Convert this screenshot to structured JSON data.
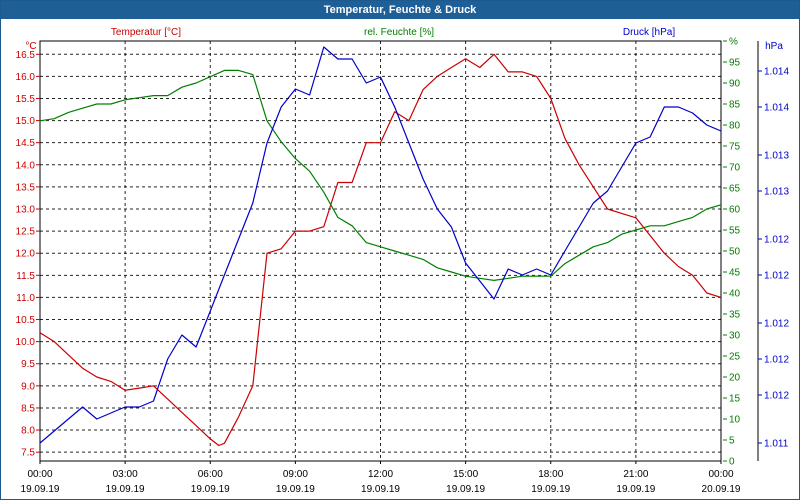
{
  "window": {
    "title": "Temperatur, Feuchte & Druck"
  },
  "colors": {
    "temperature": "#cc0000",
    "humidity": "#008000",
    "pressure": "#0000cc",
    "titlebar": "#1f5f97",
    "axis": "#000000"
  },
  "chart_data": {
    "type": "line",
    "title": "Temperatur, Feuchte & Druck",
    "legend": {
      "temperature": "Temperatur [°C]",
      "humidity": "rel. Feuchte [%]",
      "pressure": "Druck [hPa]"
    },
    "unit_labels": {
      "left": "°C",
      "middle": "%",
      "right": "hPa"
    },
    "x_ticks": [
      {
        "time": "00:00",
        "date": "19.09.19"
      },
      {
        "time": "03:00",
        "date": "19.09.19"
      },
      {
        "time": "06:00",
        "date": "19.09.19"
      },
      {
        "time": "09:00",
        "date": "19.09.19"
      },
      {
        "time": "12:00",
        "date": "19.09.19"
      },
      {
        "time": "15:00",
        "date": "19.09.19"
      },
      {
        "time": "18:00",
        "date": "19.09.19"
      },
      {
        "time": "21:00",
        "date": "19.09.19"
      },
      {
        "time": "00:00",
        "date": "20.09.19"
      }
    ],
    "xlim_hours": [
      0,
      24
    ],
    "temperature_axis": {
      "ylim": [
        7.3,
        16.8
      ],
      "ticks": [
        "7.5",
        "8.0",
        "8.5",
        "9.0",
        "9.5",
        "10.0",
        "10.5",
        "11.0",
        "11.5",
        "12.0",
        "12.5",
        "13.0",
        "13.5",
        "14.0",
        "14.5",
        "15.0",
        "15.5",
        "16.0",
        "16.5"
      ]
    },
    "humidity_axis": {
      "ylim": [
        0,
        100
      ],
      "ticks": [
        "0",
        "5",
        "10",
        "15",
        "20",
        "25",
        "30",
        "35",
        "40",
        "45",
        "50",
        "55",
        "60",
        "65",
        "70",
        "75",
        "80",
        "85",
        "90",
        "95",
        "%"
      ]
    },
    "pressure_axis": {
      "ylim": [
        1010.85,
        1014.35
      ],
      "ticks": [
        {
          "value": 1011.0,
          "label": "1.011"
        },
        {
          "value": 1011.4,
          "label": "1.012"
        },
        {
          "value": 1011.7,
          "label": "1.012"
        },
        {
          "value": 1012.0,
          "label": "1.012"
        },
        {
          "value": 1012.4,
          "label": "1.012"
        },
        {
          "value": 1012.7,
          "label": "1.012"
        },
        {
          "value": 1013.1,
          "label": "1.013"
        },
        {
          "value": 1013.4,
          "label": "1.013"
        },
        {
          "value": 1013.8,
          "label": "1.014"
        },
        {
          "value": 1014.1,
          "label": "1.014"
        }
      ]
    },
    "series": [
      {
        "name": "Temperatur [°C]",
        "axis": "temperature",
        "x": [
          0,
          0.5,
          1,
          1.5,
          2,
          2.5,
          3,
          3.5,
          4,
          4.5,
          5,
          5.5,
          6,
          6.3,
          6.5,
          7,
          7.5,
          8,
          8.5,
          9,
          9.5,
          10,
          10.5,
          11,
          11.5,
          12,
          12.5,
          13,
          13.5,
          14,
          14.5,
          15,
          15.5,
          16,
          16.5,
          17,
          17.5,
          18,
          18.5,
          19,
          19.5,
          20,
          20.5,
          21,
          21.5,
          22,
          22.5,
          23,
          23.5,
          24
        ],
        "values": [
          10.2,
          10.0,
          9.7,
          9.4,
          9.2,
          9.1,
          8.9,
          8.95,
          9.0,
          8.7,
          8.4,
          8.1,
          7.8,
          7.65,
          7.7,
          8.3,
          9.0,
          12.0,
          12.1,
          12.5,
          12.5,
          12.6,
          13.6,
          13.6,
          14.5,
          14.5,
          15.2,
          15.0,
          15.7,
          16.0,
          16.2,
          16.4,
          16.2,
          16.5,
          16.1,
          16.1,
          16.0,
          15.5,
          14.6,
          14.0,
          13.5,
          13.0,
          12.9,
          12.8,
          12.4,
          12.0,
          11.7,
          11.5,
          11.1,
          11.0
        ]
      },
      {
        "name": "rel. Feuchte [%]",
        "axis": "humidity",
        "x": [
          0,
          0.5,
          1,
          1.5,
          2,
          2.5,
          3,
          3.5,
          4,
          4.5,
          5,
          5.5,
          6,
          6.5,
          7,
          7.5,
          8,
          8.5,
          9,
          9.5,
          10,
          10.5,
          11,
          11.5,
          12,
          12.5,
          13,
          13.5,
          14,
          14.5,
          15,
          15.5,
          16,
          16.5,
          17,
          17.5,
          18,
          18.5,
          19,
          19.5,
          20,
          20.5,
          21,
          21.5,
          22,
          22.5,
          23,
          23.5,
          24
        ],
        "values": [
          81,
          81.5,
          83,
          84,
          85,
          85,
          86,
          86.5,
          87,
          87,
          89,
          90,
          91.5,
          93,
          93,
          92,
          81,
          76,
          72,
          69,
          64,
          58,
          56,
          52,
          51,
          50,
          49,
          48,
          46,
          45,
          44,
          43.5,
          43,
          43.5,
          44,
          44,
          44,
          47,
          49,
          51,
          52,
          54,
          55,
          56,
          56,
          57,
          58,
          60,
          61
        ]
      },
      {
        "name": "Druck [hPa]",
        "axis": "pressure",
        "x": [
          0,
          0.5,
          1,
          1.5,
          2,
          2.5,
          3,
          3.5,
          4,
          4.5,
          5,
          5.5,
          6,
          6.5,
          7,
          7.5,
          8,
          8.5,
          9,
          9.5,
          10,
          10.5,
          11,
          11.5,
          12,
          12.5,
          13,
          13.5,
          14,
          14.5,
          15,
          15.5,
          16,
          16.5,
          17,
          17.5,
          18,
          18.5,
          19,
          19.5,
          20,
          20.5,
          21,
          21.5,
          22,
          22.5,
          23,
          23.5,
          24
        ],
        "values": [
          1011.0,
          1011.1,
          1011.2,
          1011.3,
          1011.2,
          1011.25,
          1011.3,
          1011.3,
          1011.35,
          1011.7,
          1011.9,
          1011.8,
          1012.1,
          1012.4,
          1012.7,
          1013.0,
          1013.5,
          1013.8,
          1013.95,
          1013.9,
          1014.3,
          1014.2,
          1014.2,
          1014.0,
          1014.05,
          1013.8,
          1013.5,
          1013.2,
          1012.95,
          1012.8,
          1012.5,
          1012.35,
          1012.2,
          1012.45,
          1012.4,
          1012.45,
          1012.4,
          1012.6,
          1012.8,
          1013.0,
          1013.1,
          1013.3,
          1013.5,
          1013.55,
          1013.8,
          1013.8,
          1013.75,
          1013.65,
          1013.6
        ]
      }
    ]
  }
}
